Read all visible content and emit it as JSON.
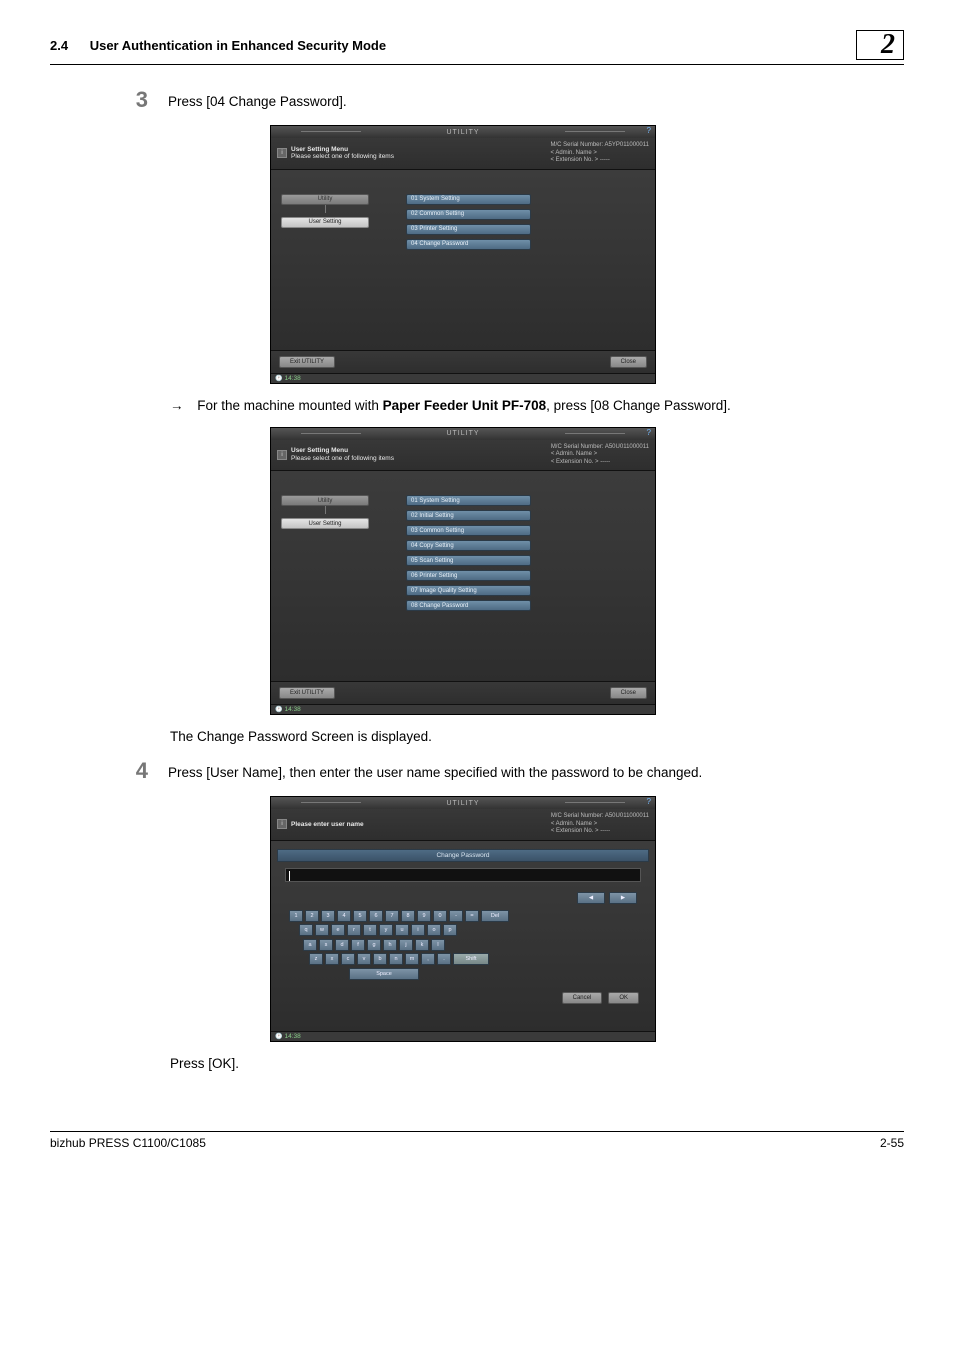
{
  "header": {
    "section_number": "2.4",
    "section_title": "User Authentication in Enhanced Security Mode",
    "chapter_number": "2"
  },
  "step3": {
    "number": "3",
    "text_prefix": "Press [",
    "text_link": "04 Change Password",
    "text_suffix": "]."
  },
  "panel_common": {
    "titlebar": "UTILITY",
    "info_heading_line1": "User Setting Menu",
    "info_heading_line2": "Please select one of following items",
    "mc_serial_prefix": "M/C Serial Number:",
    "admin_name_prefix": "< Admin. Name >",
    "ext_no_prefix": "< Extension No. >",
    "ext_no_value": "-----",
    "crumb1": "Utility",
    "crumb2": "User Setting",
    "exit_btn": "Exit UTILITY",
    "close_btn": "Close",
    "clock": "14:38"
  },
  "panel1": {
    "mc_serial_value": "A5YP011000011",
    "items": {
      "i1": "01 System Setting",
      "i2": "02 Common Setting",
      "i3": "03 Printer Setting",
      "i4": "04 Change Password"
    }
  },
  "arrow_text_prefix": "For the machine mounted with ",
  "arrow_text_bold": "Paper Feeder Unit PF-708",
  "arrow_text_suffix": ", press [08 Change Password].",
  "panel2": {
    "mc_serial_value": "A50U011000011",
    "items": {
      "i1": "01 System Setting",
      "i2": "02 Initial Setting",
      "i3": "03 Common Setting",
      "i4": "04 Copy Setting",
      "i5": "05 Scan Setting",
      "i6": "06 Printer Setting",
      "i7": "07 Image Quality Setting",
      "i8": "08 Change Password"
    }
  },
  "after_panel2": "The Change Password Screen is displayed.",
  "step4": {
    "number": "4",
    "text": "Press [User Name], then enter the user name specified with the password to be changed."
  },
  "panel3": {
    "mc_serial_value": "A50U011000011",
    "info_heading": "Please enter user name",
    "title": "Change Password",
    "del": "Del",
    "shift": "Shift",
    "space": "Space",
    "cancel": "Cancel",
    "ok": "OK"
  },
  "after_panel3": "Press [OK].",
  "footer": {
    "product": "bizhub PRESS C1100/C1085",
    "page": "2-55"
  },
  "kbd": {
    "r1": [
      "1",
      "2",
      "3",
      "4",
      "5",
      "6",
      "7",
      "8",
      "9",
      "0",
      "-",
      "="
    ],
    "r2": [
      "q",
      "w",
      "e",
      "r",
      "t",
      "y",
      "u",
      "i",
      "o",
      "p"
    ],
    "r3": [
      "a",
      "s",
      "d",
      "f",
      "g",
      "h",
      "j",
      "k",
      "l"
    ],
    "r4": [
      "z",
      "x",
      "c",
      "v",
      "b",
      "n",
      "m",
      ",",
      "."
    ]
  }
}
